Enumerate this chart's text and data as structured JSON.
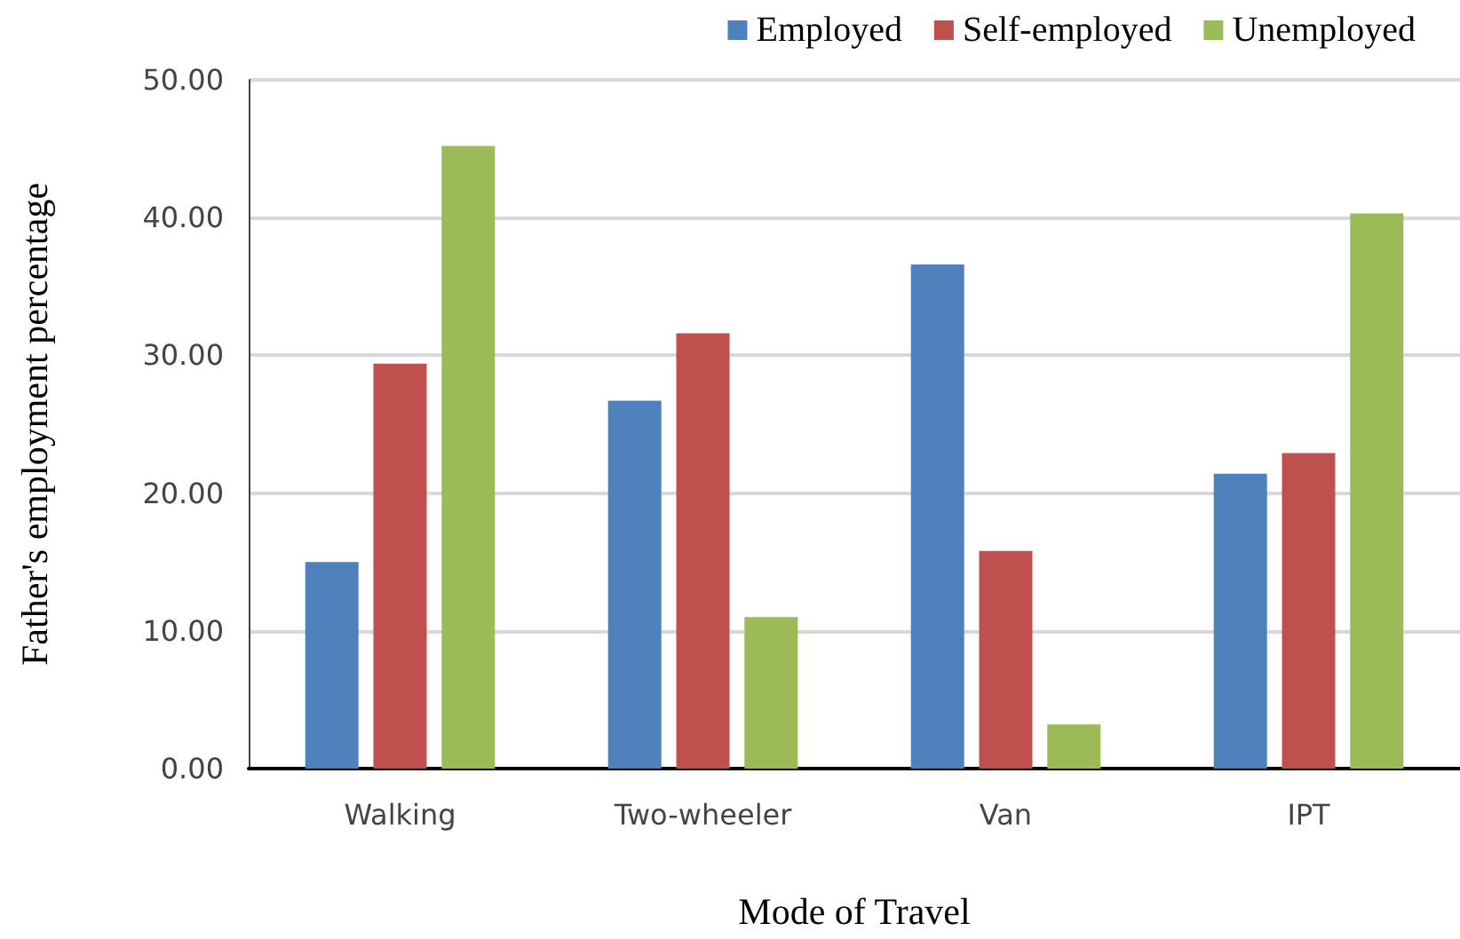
{
  "chart_data": {
    "type": "bar",
    "xlabel": "Mode of Travel",
    "ylabel": "Father's employment percentage",
    "categories": [
      "Walking",
      "Two-wheeler",
      "Van",
      "IPT"
    ],
    "series": [
      {
        "name": "Employed",
        "color": "#4f81bd",
        "values": [
          15.0,
          26.7,
          36.6,
          21.4
        ]
      },
      {
        "name": "Self-employed",
        "color": "#c0504d",
        "values": [
          29.4,
          31.6,
          15.8,
          22.9
        ]
      },
      {
        "name": "Unemployed",
        "color": "#9bbb59",
        "values": [
          45.2,
          11.0,
          3.2,
          40.3
        ]
      }
    ],
    "ylim": [
      0,
      50
    ],
    "yticks": [
      {
        "value": 0,
        "label": "0.00"
      },
      {
        "value": 10,
        "label": "10.00"
      },
      {
        "value": 20,
        "label": "20.00"
      },
      {
        "value": 30,
        "label": "30.00"
      },
      {
        "value": 40,
        "label": "40.00"
      },
      {
        "value": 50,
        "label": "50.00"
      }
    ],
    "grid": "y",
    "legend": "top right"
  }
}
